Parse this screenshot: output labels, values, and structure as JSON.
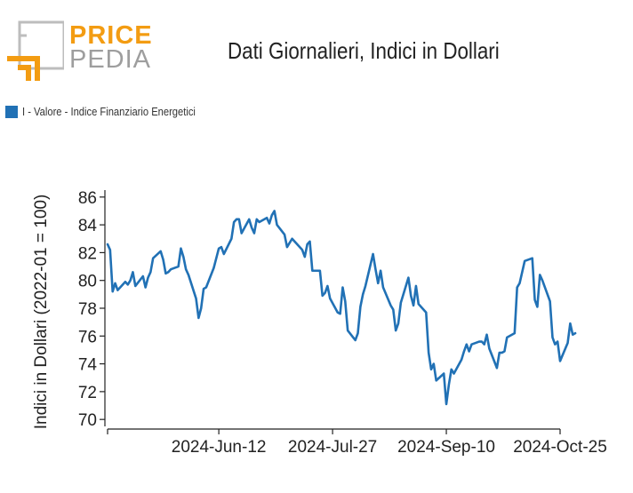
{
  "header": {
    "logo_top": "PRICE",
    "logo_bottom": "PEDIA",
    "title": "Dati Giornalieri, Indici in Dollari"
  },
  "colors": {
    "series": "#2171b5",
    "logo_orange": "#f39c12",
    "logo_gray": "#9e9e9e"
  },
  "chart_data": {
    "type": "line",
    "title": "Dati Giornalieri, Indici in Dollari",
    "ylabel": "Indici in Dollari (2022-01 = 100)",
    "xlabel": "",
    "ylim": [
      69.5,
      86.5
    ],
    "yticks": [
      70,
      72,
      74,
      76,
      78,
      80,
      82,
      84,
      86
    ],
    "xlim": [
      "2024-04-29",
      "2024-10-25"
    ],
    "xticks": [
      {
        "date": "2024-04-29",
        "label": ""
      },
      {
        "date": "2024-06-12",
        "label": "2024-Jun-12"
      },
      {
        "date": "2024-07-27",
        "label": "2024-Jul-27"
      },
      {
        "date": "2024-09-10",
        "label": "2024-Sep-10"
      },
      {
        "date": "2024-10-25",
        "label": "2024-Oct-25"
      }
    ],
    "legend_position": "top-left",
    "grid": false,
    "series": [
      {
        "name": "I - Valore - Indice Finanziario Energetici",
        "points": [
          [
            "2024-04-29",
            82.6
          ],
          [
            "2024-04-30",
            82.2
          ],
          [
            "2024-05-01",
            79.2
          ],
          [
            "2024-05-02",
            79.8
          ],
          [
            "2024-05-03",
            79.3
          ],
          [
            "2024-05-06",
            79.9
          ],
          [
            "2024-05-07",
            79.7
          ],
          [
            "2024-05-08",
            80.0
          ],
          [
            "2024-05-09",
            80.6
          ],
          [
            "2024-05-10",
            79.6
          ],
          [
            "2024-05-13",
            80.3
          ],
          [
            "2024-05-14",
            79.5
          ],
          [
            "2024-05-15",
            80.2
          ],
          [
            "2024-05-16",
            80.6
          ],
          [
            "2024-05-17",
            81.6
          ],
          [
            "2024-05-20",
            82.1
          ],
          [
            "2024-05-21",
            81.5
          ],
          [
            "2024-05-22",
            80.5
          ],
          [
            "2024-05-23",
            80.6
          ],
          [
            "2024-05-24",
            80.8
          ],
          [
            "2024-05-27",
            81.0
          ],
          [
            "2024-05-28",
            82.3
          ],
          [
            "2024-05-29",
            81.7
          ],
          [
            "2024-05-30",
            80.8
          ],
          [
            "2024-05-31",
            80.4
          ],
          [
            "2024-06-03",
            78.7
          ],
          [
            "2024-06-04",
            77.3
          ],
          [
            "2024-06-05",
            78.0
          ],
          [
            "2024-06-06",
            79.4
          ],
          [
            "2024-06-07",
            79.5
          ],
          [
            "2024-06-10",
            80.9
          ],
          [
            "2024-06-11",
            81.6
          ],
          [
            "2024-06-12",
            82.3
          ],
          [
            "2024-06-13",
            82.4
          ],
          [
            "2024-06-14",
            81.9
          ],
          [
            "2024-06-17",
            83.0
          ],
          [
            "2024-06-18",
            84.2
          ],
          [
            "2024-06-19",
            84.4
          ],
          [
            "2024-06-20",
            84.4
          ],
          [
            "2024-06-21",
            83.4
          ],
          [
            "2024-06-24",
            84.4
          ],
          [
            "2024-06-25",
            83.8
          ],
          [
            "2024-06-26",
            83.4
          ],
          [
            "2024-06-27",
            84.4
          ],
          [
            "2024-06-28",
            84.2
          ],
          [
            "2024-07-01",
            84.5
          ],
          [
            "2024-07-02",
            84.1
          ],
          [
            "2024-07-03",
            84.7
          ],
          [
            "2024-07-04",
            85.0
          ],
          [
            "2024-07-05",
            84.0
          ],
          [
            "2024-07-08",
            83.3
          ],
          [
            "2024-07-09",
            82.4
          ],
          [
            "2024-07-10",
            82.7
          ],
          [
            "2024-07-11",
            83.0
          ],
          [
            "2024-07-12",
            82.8
          ],
          [
            "2024-07-15",
            82.2
          ],
          [
            "2024-07-16",
            81.7
          ],
          [
            "2024-07-17",
            82.6
          ],
          [
            "2024-07-18",
            82.8
          ],
          [
            "2024-07-19",
            80.7
          ],
          [
            "2024-07-22",
            80.7
          ],
          [
            "2024-07-23",
            78.9
          ],
          [
            "2024-07-24",
            79.1
          ],
          [
            "2024-07-25",
            79.6
          ],
          [
            "2024-07-26",
            78.7
          ],
          [
            "2024-07-29",
            77.7
          ],
          [
            "2024-07-30",
            77.6
          ],
          [
            "2024-07-31",
            79.5
          ],
          [
            "2024-08-01",
            78.5
          ],
          [
            "2024-08-02",
            76.4
          ],
          [
            "2024-08-05",
            75.7
          ],
          [
            "2024-08-06",
            76.2
          ],
          [
            "2024-08-07",
            78.1
          ],
          [
            "2024-08-08",
            79.0
          ],
          [
            "2024-08-09",
            79.6
          ],
          [
            "2024-08-12",
            81.9
          ],
          [
            "2024-08-13",
            80.8
          ],
          [
            "2024-08-14",
            79.8
          ],
          [
            "2024-08-15",
            80.7
          ],
          [
            "2024-08-16",
            79.5
          ],
          [
            "2024-08-19",
            78.2
          ],
          [
            "2024-08-20",
            77.9
          ],
          [
            "2024-08-21",
            76.4
          ],
          [
            "2024-08-22",
            76.9
          ],
          [
            "2024-08-23",
            78.4
          ],
          [
            "2024-08-26",
            80.2
          ],
          [
            "2024-08-27",
            78.9
          ],
          [
            "2024-08-28",
            78.2
          ],
          [
            "2024-08-29",
            79.6
          ],
          [
            "2024-08-30",
            78.3
          ],
          [
            "2024-09-02",
            77.7
          ],
          [
            "2024-09-03",
            74.8
          ],
          [
            "2024-09-04",
            73.6
          ],
          [
            "2024-09-05",
            74.0
          ],
          [
            "2024-09-06",
            72.8
          ],
          [
            "2024-09-09",
            73.3
          ],
          [
            "2024-09-10",
            71.1
          ],
          [
            "2024-09-11",
            72.5
          ],
          [
            "2024-09-12",
            73.6
          ],
          [
            "2024-09-13",
            73.3
          ],
          [
            "2024-09-16",
            74.3
          ],
          [
            "2024-09-17",
            74.9
          ],
          [
            "2024-09-18",
            75.4
          ],
          [
            "2024-09-19",
            74.9
          ],
          [
            "2024-09-20",
            75.4
          ],
          [
            "2024-09-23",
            75.6
          ],
          [
            "2024-09-24",
            75.6
          ],
          [
            "2024-09-25",
            75.4
          ],
          [
            "2024-09-26",
            76.1
          ],
          [
            "2024-09-27",
            75.1
          ],
          [
            "2024-09-30",
            73.7
          ],
          [
            "2024-10-01",
            74.8
          ],
          [
            "2024-10-02",
            74.8
          ],
          [
            "2024-10-03",
            74.9
          ],
          [
            "2024-10-04",
            75.9
          ],
          [
            "2024-10-07",
            76.2
          ],
          [
            "2024-10-08",
            79.5
          ],
          [
            "2024-10-09",
            79.8
          ],
          [
            "2024-10-10",
            80.6
          ],
          [
            "2024-10-11",
            81.4
          ],
          [
            "2024-10-14",
            81.6
          ],
          [
            "2024-10-15",
            78.6
          ],
          [
            "2024-10-16",
            78.1
          ],
          [
            "2024-10-17",
            80.4
          ],
          [
            "2024-10-18",
            80.0
          ],
          [
            "2024-10-21",
            78.5
          ],
          [
            "2024-10-22",
            75.9
          ],
          [
            "2024-10-23",
            75.4
          ],
          [
            "2024-10-24",
            75.6
          ],
          [
            "2024-10-25",
            74.2
          ],
          [
            "2024-10-28",
            75.5
          ],
          [
            "2024-10-29",
            76.9
          ],
          [
            "2024-10-30",
            76.1
          ],
          [
            "2024-10-31",
            76.2
          ]
        ]
      }
    ]
  }
}
